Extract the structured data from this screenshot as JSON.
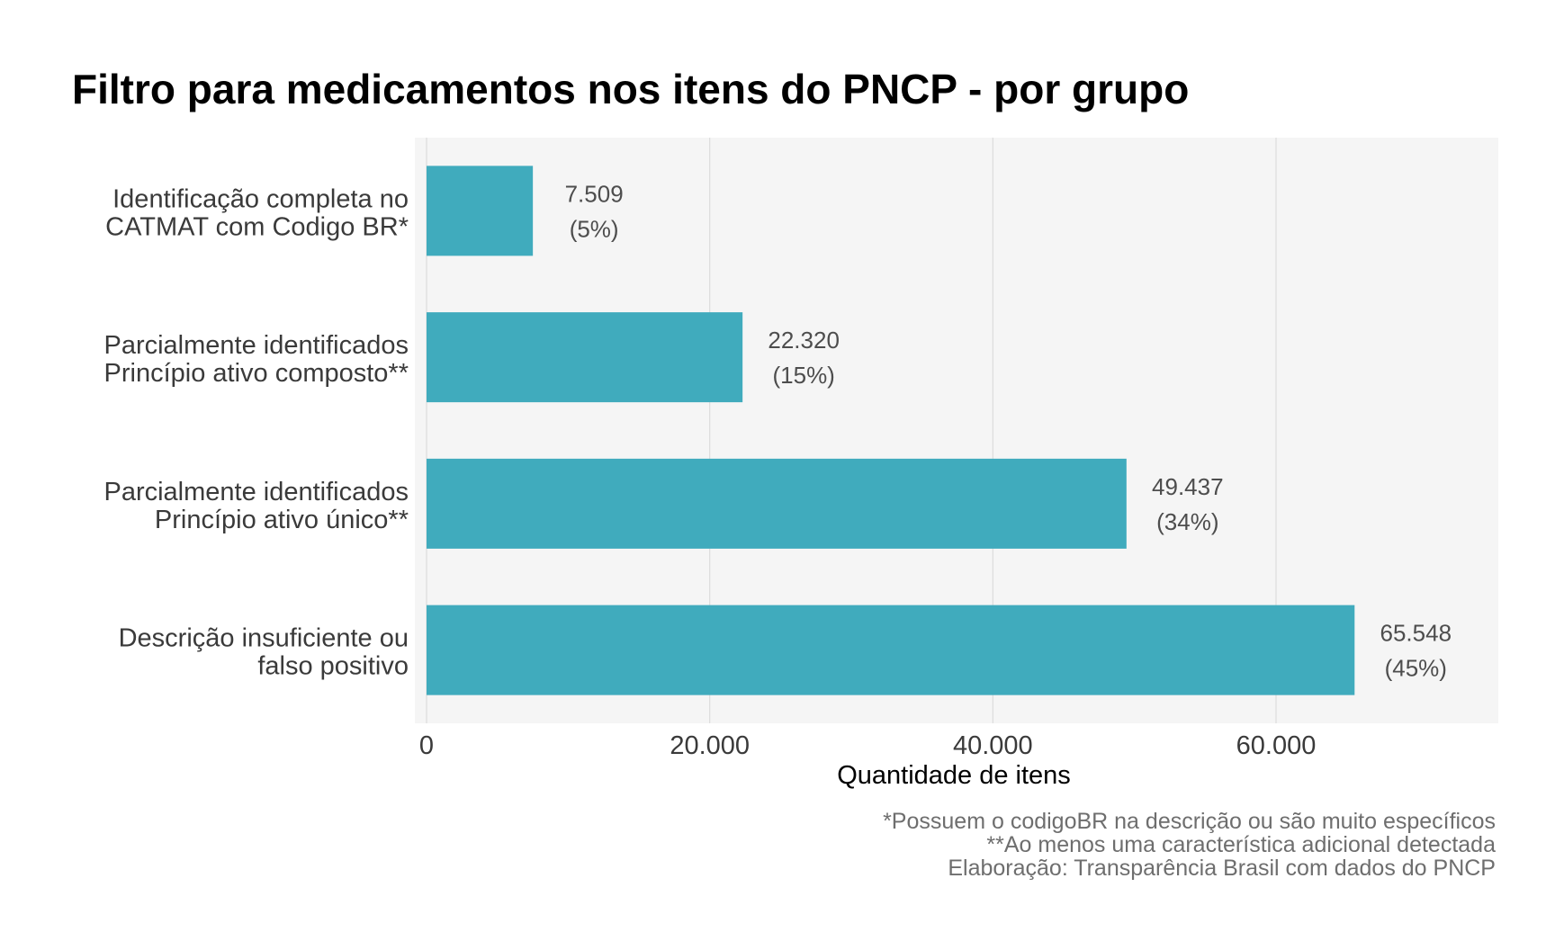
{
  "chart_data": {
    "type": "bar",
    "orientation": "horizontal",
    "title": "Filtro para medicamentos nos itens do PNCP - por grupo",
    "xlabel": "Quantidade de itens",
    "ylabel": "",
    "xlim": [
      0,
      76000
    ],
    "x_ticks": [
      0,
      20000,
      40000,
      60000
    ],
    "x_tick_labels": [
      "0",
      "20.000",
      "40.000",
      "60.000"
    ],
    "bar_color": "#40abbd",
    "panel_background": "#f5f5f5",
    "grid_color": "#dcdcdc",
    "categories": [
      {
        "lines": [
          "Identificação completa no",
          "CATMAT com Codigo BR*"
        ],
        "value": 7509,
        "value_label": "7.509",
        "pct_label": "(5%)"
      },
      {
        "lines": [
          "Parcialmente identificados",
          "Princípio ativo composto**"
        ],
        "value": 22320,
        "value_label": "22.320",
        "pct_label": "(15%)"
      },
      {
        "lines": [
          "Parcialmente identificados",
          "Princípio ativo único**"
        ],
        "value": 49437,
        "value_label": "49.437",
        "pct_label": "(34%)"
      },
      {
        "lines": [
          "Descrição insuficiente ou",
          "falso positivo"
        ],
        "value": 65548,
        "value_label": "65.548",
        "pct_label": "(45%)"
      }
    ]
  },
  "notes": [
    "*Possuem o codigoBR na descrição ou são muito específicos",
    "**Ao menos uma característica adicional detectada",
    "Elaboração: Transparência Brasil com dados do PNCP"
  ]
}
